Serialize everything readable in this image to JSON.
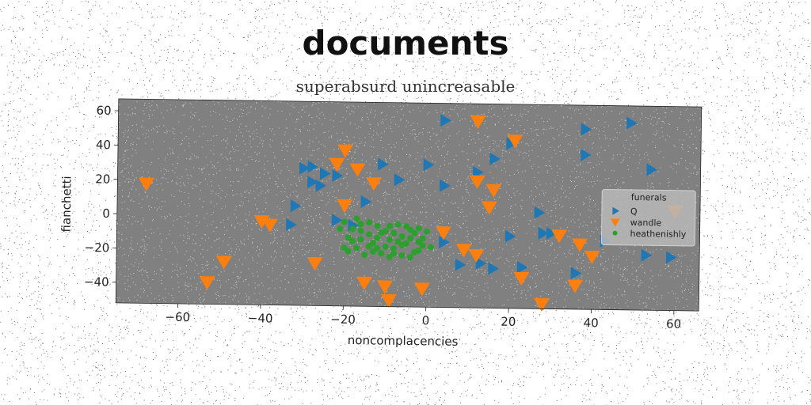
{
  "title": "documents",
  "subtitle": "superabsurd unincreasable",
  "chart_data": {
    "type": "scatter",
    "xlabel": "noncomplacencies",
    "ylabel": "fianchetti",
    "xlim": [
      -75,
      66
    ],
    "ylim": [
      -52,
      67
    ],
    "xticks": [
      -60,
      -40,
      -20,
      0,
      20,
      40,
      60
    ],
    "yticks": [
      -40,
      -20,
      0,
      20,
      40,
      60
    ],
    "xtick_labels": [
      "−60",
      "−40",
      "−20",
      "0",
      "20",
      "40",
      "60"
    ],
    "ytick_labels": [
      "−40",
      "−20",
      "0",
      "20",
      "40",
      "60"
    ],
    "grid": false,
    "background": "#808080",
    "legend": {
      "title": "funerals",
      "placement": "right"
    },
    "series": [
      {
        "name": "Q",
        "marker": "triangle-right",
        "color": "#1f77b4",
        "points": [
          [
            4,
            57
          ],
          [
            12,
            27
          ],
          [
            -30,
            28
          ],
          [
            -28,
            29
          ],
          [
            -25,
            25
          ],
          [
            -22,
            24
          ],
          [
            -28,
            20
          ],
          [
            -26,
            18
          ],
          [
            -11,
            31
          ],
          [
            -7,
            22
          ],
          [
            -15,
            9
          ],
          [
            0,
            31
          ],
          [
            4,
            19
          ],
          [
            20,
            44
          ],
          [
            16,
            35
          ],
          [
            38,
            53
          ],
          [
            49,
            57
          ],
          [
            38,
            38
          ],
          [
            54,
            30
          ],
          [
            27,
            4
          ],
          [
            -32,
            6
          ],
          [
            -33,
            -5
          ],
          [
            -22,
            -2
          ],
          [
            -18,
            -5
          ],
          [
            20,
            -10
          ],
          [
            28,
            -8
          ],
          [
            43,
            -12
          ],
          [
            53,
            -20
          ],
          [
            59,
            -21
          ],
          [
            4,
            -14
          ],
          [
            8,
            -27
          ],
          [
            13,
            -26
          ],
          [
            16,
            -29
          ],
          [
            23,
            -28
          ],
          [
            36,
            -31
          ],
          [
            30,
            -8
          ]
        ]
      },
      {
        "name": "wandle",
        "marker": "triangle-down",
        "color": "#ff7f0e",
        "points": [
          [
            -68,
            18
          ],
          [
            -20,
            39
          ],
          [
            -22,
            31
          ],
          [
            -17,
            28
          ],
          [
            -13,
            20
          ],
          [
            12,
            57
          ],
          [
            21,
            46
          ],
          [
            12,
            22
          ],
          [
            16,
            17
          ],
          [
            15,
            7
          ],
          [
            -20,
            7
          ],
          [
            -38,
            -5
          ],
          [
            -40,
            -3
          ],
          [
            4,
            -8
          ],
          [
            9,
            -18
          ],
          [
            12,
            -21
          ],
          [
            32,
            -9
          ],
          [
            37,
            -14
          ],
          [
            40,
            -21
          ],
          [
            -49,
            -27
          ],
          [
            -27,
            -27
          ],
          [
            -53,
            -39
          ],
          [
            -15,
            -38
          ],
          [
            -10,
            -40
          ],
          [
            -9,
            -48
          ],
          [
            -1,
            -41
          ],
          [
            23,
            -34
          ],
          [
            36,
            -38
          ],
          [
            28,
            -49
          ],
          [
            60,
            6
          ]
        ]
      },
      {
        "name": "heathenishly",
        "marker": "circle",
        "color": "#2ca02c",
        "points": [
          [
            -20,
            -3
          ],
          [
            -18,
            -7
          ],
          [
            -16,
            -4
          ],
          [
            -14,
            -10
          ],
          [
            -13,
            -15
          ],
          [
            -12,
            -5
          ],
          [
            -10,
            -8
          ],
          [
            -9,
            -13
          ],
          [
            -8,
            -18
          ],
          [
            -7,
            -4
          ],
          [
            -6,
            -11
          ],
          [
            -5,
            -15
          ],
          [
            -4,
            -7
          ],
          [
            -3,
            -20
          ],
          [
            -2,
            -6
          ],
          [
            -1,
            -12
          ],
          [
            0,
            -8
          ],
          [
            1,
            -17
          ],
          [
            -19,
            -12
          ],
          [
            -17,
            -18
          ],
          [
            -15,
            -22
          ],
          [
            -11,
            -21
          ],
          [
            -9,
            -23
          ],
          [
            -6,
            -22
          ],
          [
            -4,
            -23
          ],
          [
            -2,
            -19
          ],
          [
            -20,
            -18
          ],
          [
            -18,
            -14
          ],
          [
            -16,
            -13
          ],
          [
            -14,
            -3
          ],
          [
            -12,
            -12
          ],
          [
            -10,
            -17
          ],
          [
            -8,
            -9
          ],
          [
            -6,
            -16
          ],
          [
            -4,
            -12
          ],
          [
            -3,
            -9
          ],
          [
            -1,
            -16
          ],
          [
            -21,
            -7
          ],
          [
            -19,
            -20
          ],
          [
            -13,
            -20
          ],
          [
            -11,
            -9
          ],
          [
            -7,
            -14
          ],
          [
            -5,
            -5
          ],
          [
            -16,
            -8
          ],
          [
            -14,
            -17
          ],
          [
            -8,
            -21
          ],
          [
            -2,
            -14
          ],
          [
            -17,
            -1
          ],
          [
            -12,
            -18
          ],
          [
            -9,
            -5
          ]
        ]
      }
    ]
  }
}
